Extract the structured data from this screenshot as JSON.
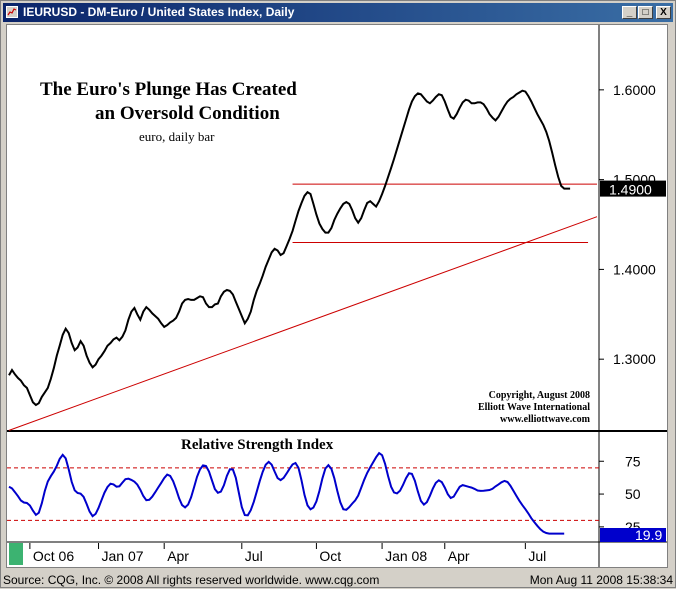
{
  "window": {
    "title": "IEURUSD - DM-Euro / United States Index, Daily",
    "buttons": [
      "_",
      "□",
      "X"
    ]
  },
  "status": {
    "left": "Source: CQG, Inc. © 2008 All rights reserved worldwide. www.cqg.com",
    "right": "Mon Aug 11 2008 15:38:34"
  },
  "colors": {
    "price_line": "#000000",
    "trend_line": "#cc0000",
    "rsi_line": "#0000cc",
    "last_box": "#000000",
    "rsi_box": "#0000cc"
  },
  "chart_data": [
    {
      "type": "line",
      "title": "The Euro's Plunge Has Created",
      "subtitle": "an Oversold Condition",
      "note": "euro, daily bar",
      "copyright": [
        "Copyright, August 2008",
        "Elliott Wave International",
        "www.elliottwave.com"
      ],
      "last_value_label": "1.4900",
      "y_ticks": [
        1.3,
        1.4,
        1.5,
        1.6
      ],
      "y_tick_labels": [
        "1.3000",
        "1.4000",
        "1.5000",
        "1.6000"
      ],
      "ylim": [
        1.22,
        1.67
      ],
      "x_labels": [
        "Oct 06",
        "Jan 07",
        "Apr",
        "Jul",
        "Oct",
        "Jan 08",
        "Apr",
        "Jul"
      ],
      "x_label_index": [
        8,
        31,
        53,
        79,
        104,
        126,
        147,
        174
      ],
      "xlim_index": [
        0,
        197
      ],
      "series": [
        {
          "values": [
            1.282,
            1.288,
            1.283,
            1.279,
            1.276,
            1.271,
            1.268,
            1.26,
            1.252,
            1.249,
            1.251,
            1.258,
            1.263,
            1.268,
            1.278,
            1.29,
            1.304,
            1.315,
            1.327,
            1.334,
            1.329,
            1.318,
            1.31,
            1.313,
            1.32,
            1.315,
            1.304,
            1.296,
            1.291,
            1.294,
            1.3,
            1.304,
            1.309,
            1.315,
            1.318,
            1.322,
            1.324,
            1.321,
            1.325,
            1.332,
            1.344,
            1.353,
            1.357,
            1.35,
            1.344,
            1.353,
            1.358,
            1.355,
            1.351,
            1.348,
            1.345,
            1.34,
            1.336,
            1.338,
            1.341,
            1.343,
            1.346,
            1.353,
            1.362,
            1.366,
            1.367,
            1.366,
            1.366,
            1.368,
            1.37,
            1.369,
            1.362,
            1.358,
            1.358,
            1.361,
            1.362,
            1.37,
            1.375,
            1.377,
            1.376,
            1.372,
            1.364,
            1.356,
            1.348,
            1.34,
            1.345,
            1.353,
            1.366,
            1.376,
            1.384,
            1.393,
            1.403,
            1.411,
            1.419,
            1.423,
            1.421,
            1.416,
            1.418,
            1.426,
            1.434,
            1.443,
            1.454,
            1.465,
            1.474,
            1.482,
            1.486,
            1.484,
            1.473,
            1.461,
            1.451,
            1.445,
            1.441,
            1.441,
            1.446,
            1.455,
            1.462,
            1.468,
            1.473,
            1.475,
            1.473,
            1.466,
            1.457,
            1.452,
            1.457,
            1.466,
            1.474,
            1.476,
            1.473,
            1.47,
            1.476,
            1.484,
            1.493,
            1.503,
            1.513,
            1.523,
            1.534,
            1.545,
            1.556,
            1.567,
            1.578,
            1.587,
            1.593,
            1.596,
            1.595,
            1.591,
            1.587,
            1.585,
            1.588,
            1.592,
            1.595,
            1.594,
            1.587,
            1.578,
            1.57,
            1.568,
            1.573,
            1.58,
            1.586,
            1.589,
            1.588,
            1.585,
            1.585,
            1.586,
            1.586,
            1.584,
            1.579,
            1.573,
            1.569,
            1.566,
            1.57,
            1.576,
            1.582,
            1.587,
            1.59,
            1.592,
            1.595,
            1.597,
            1.599,
            1.598,
            1.593,
            1.587,
            1.58,
            1.573,
            1.567,
            1.561,
            1.553,
            1.543,
            1.53,
            1.516,
            1.503,
            1.493,
            1.49,
            1.49,
            1.49,
            1.49,
            1.49,
            1.49,
            1.49
          ]
        }
      ],
      "lines": [
        {
          "x": [
            0,
            197
          ],
          "y": [
            1.2207,
            1.4587
          ]
        },
        {
          "x": [
            95,
            197
          ],
          "y": [
            1.495,
            1.495
          ]
        },
        {
          "x": [
            95,
            194
          ],
          "y": [
            1.43,
            1.43
          ]
        }
      ]
    },
    {
      "type": "line",
      "title": "Relative Strength Index",
      "last_value_label": "19.9",
      "y_ticks": [
        25,
        50,
        75
      ],
      "y_tick_labels": [
        "25",
        "50",
        "75"
      ],
      "ylim": [
        15,
        95
      ],
      "reference_lines": [
        70,
        30
      ],
      "series": [
        {
          "values": [
            55.6,
            54.3,
            51.4,
            48.4,
            45.1,
            43.6,
            43.2,
            41.3,
            37.4,
            34.1,
            35.7,
            43.0,
            52.3,
            59.6,
            63.6,
            67.1,
            71.5,
            76.8,
            79.8,
            77.2,
            68.9,
            59.3,
            52.9,
            50.8,
            50.3,
            47.9,
            42.5,
            36.6,
            33.1,
            34.9,
            39.4,
            45.3,
            51.1,
            55.4,
            57.9,
            57.4,
            55.6,
            55.9,
            58.7,
            61.3,
            61.7,
            60.8,
            59.4,
            57.2,
            53.3,
            48.5,
            45.3,
            45.6,
            48.1,
            51.5,
            55.0,
            58.5,
            62.2,
            64.8,
            63.8,
            59.7,
            53.7,
            46.8,
            41.6,
            39.8,
            42.0,
            47.5,
            55.3,
            63.1,
            68.8,
            71.8,
            71.4,
            67.2,
            60.3,
            53.8,
            51.0,
            51.9,
            56.7,
            63.9,
            68.9,
            68.7,
            62.4,
            51.2,
            40.1,
            34.0,
            33.8,
            37.8,
            44.1,
            51.7,
            59.8,
            67.0,
            72.4,
            74.5,
            72.4,
            67.2,
            62.2,
            60.6,
            62.3,
            65.7,
            69.3,
            72.6,
            73.7,
            69.9,
            60.5,
            49.4,
            41.4,
            38.4,
            39.7,
            44.4,
            52.3,
            61.9,
            69.5,
            72.0,
            69.2,
            62.1,
            52.4,
            43.7,
            38.5,
            38.0,
            40.1,
            42.7,
            45.2,
            48.9,
            54.8,
            60.9,
            66.1,
            70.3,
            74.1,
            78.1,
            81.2,
            79.6,
            73.0,
            63.7,
            55.6,
            51.3,
            50.5,
            52.5,
            56.9,
            62.1,
            65.8,
            65.4,
            60.1,
            51.9,
            44.8,
            42.0,
            43.9,
            48.7,
            54.1,
            58.5,
            60.5,
            59.1,
            54.9,
            49.9,
            47.0,
            48.1,
            51.9,
            55.5,
            56.8,
            56.2,
            55.5,
            54.9,
            53.9,
            52.7,
            52.4,
            52.5,
            52.8,
            53.1,
            54.0,
            55.8,
            57.4,
            59.0,
            60.0,
            59.2,
            56.4,
            52.5,
            48.6,
            44.9,
            41.5,
            38.5,
            35.2,
            31.6,
            28.6,
            25.8,
            23.2,
            21.4,
            20.3,
            19.9,
            19.9,
            19.9,
            19.9,
            19.9,
            19.9
          ]
        }
      ]
    }
  ]
}
